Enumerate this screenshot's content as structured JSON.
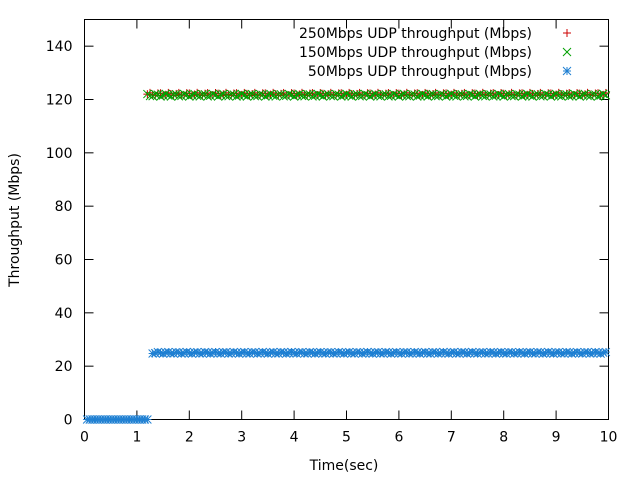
{
  "chart_data": {
    "type": "scatter",
    "title": "",
    "xlabel": "Time(sec)",
    "ylabel": "Throughput (Mbps)",
    "xlim": [
      0,
      10
    ],
    "ylim": [
      0,
      150
    ],
    "xticks": [
      "0",
      "1",
      "2",
      "3",
      "4",
      "5",
      "6",
      "7",
      "8",
      "9",
      "10"
    ],
    "yticks": [
      "0",
      "20",
      "40",
      "60",
      "80",
      "100",
      "120",
      "140"
    ],
    "grid": false,
    "legend_position": "top-right",
    "series": [
      {
        "name": "250Mbps UDP throughput (Mbps)",
        "marker": "plus",
        "color": "#cc0000",
        "segments": [
          {
            "x_start": 1.2,
            "x_end": 9.95,
            "step": 0.05,
            "y": 122.0,
            "jitter": 0.5
          }
        ]
      },
      {
        "name": "150Mbps UDP throughput (Mbps)",
        "marker": "cross",
        "color": "#00a000",
        "segments": [
          {
            "x_start": 1.2,
            "x_end": 9.95,
            "step": 0.05,
            "y": 121.6,
            "jitter": 0.5
          }
        ]
      },
      {
        "name": "50Mbps UDP throughput (Mbps)",
        "marker": "star",
        "color": "#1e7fd2",
        "segments": [
          {
            "x_start": 0.05,
            "x_end": 1.2,
            "step": 0.05,
            "y": 0,
            "jitter": 0
          },
          {
            "x_start": 1.3,
            "x_end": 9.95,
            "step": 0.05,
            "y": 25.0,
            "jitter": 0.3
          }
        ]
      }
    ]
  }
}
